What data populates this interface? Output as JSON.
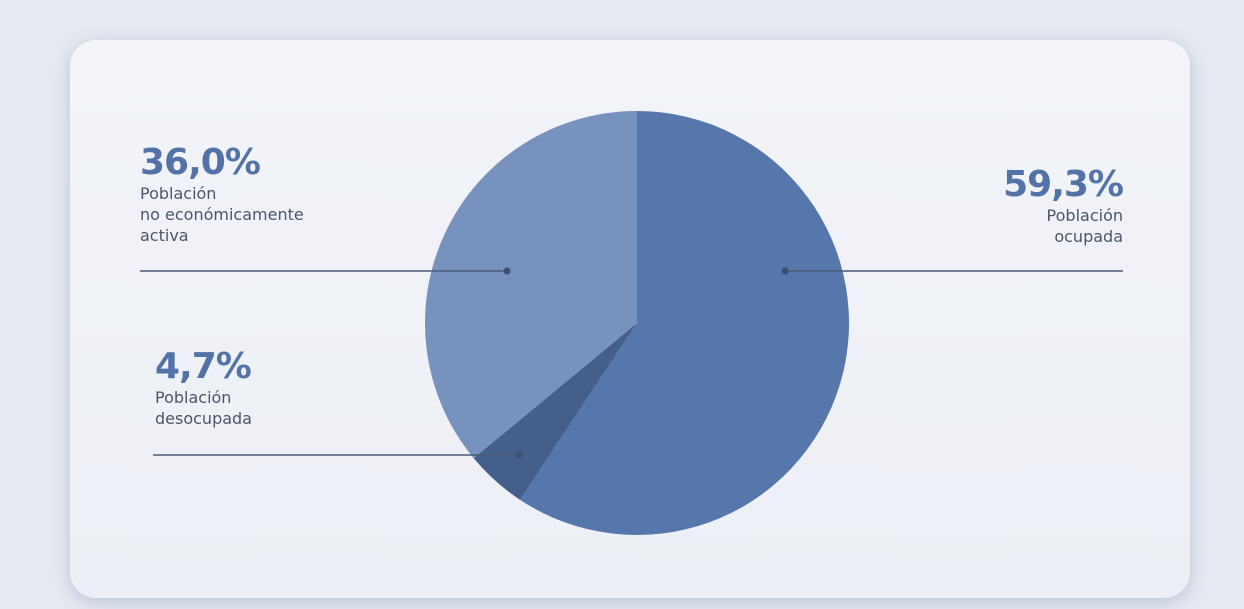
{
  "chart_data": {
    "type": "pie",
    "categories": [
      "Población\nocupada",
      "Población\ndesocupada",
      "Población\nno económicamente\nactiva"
    ],
    "values": [
      59.3,
      4.7,
      36.0
    ],
    "value_labels": [
      "59,3%",
      "4,7%",
      "36,0%"
    ],
    "colors": [
      "#5677ab",
      "#445f8c",
      "#7892bf"
    ]
  }
}
